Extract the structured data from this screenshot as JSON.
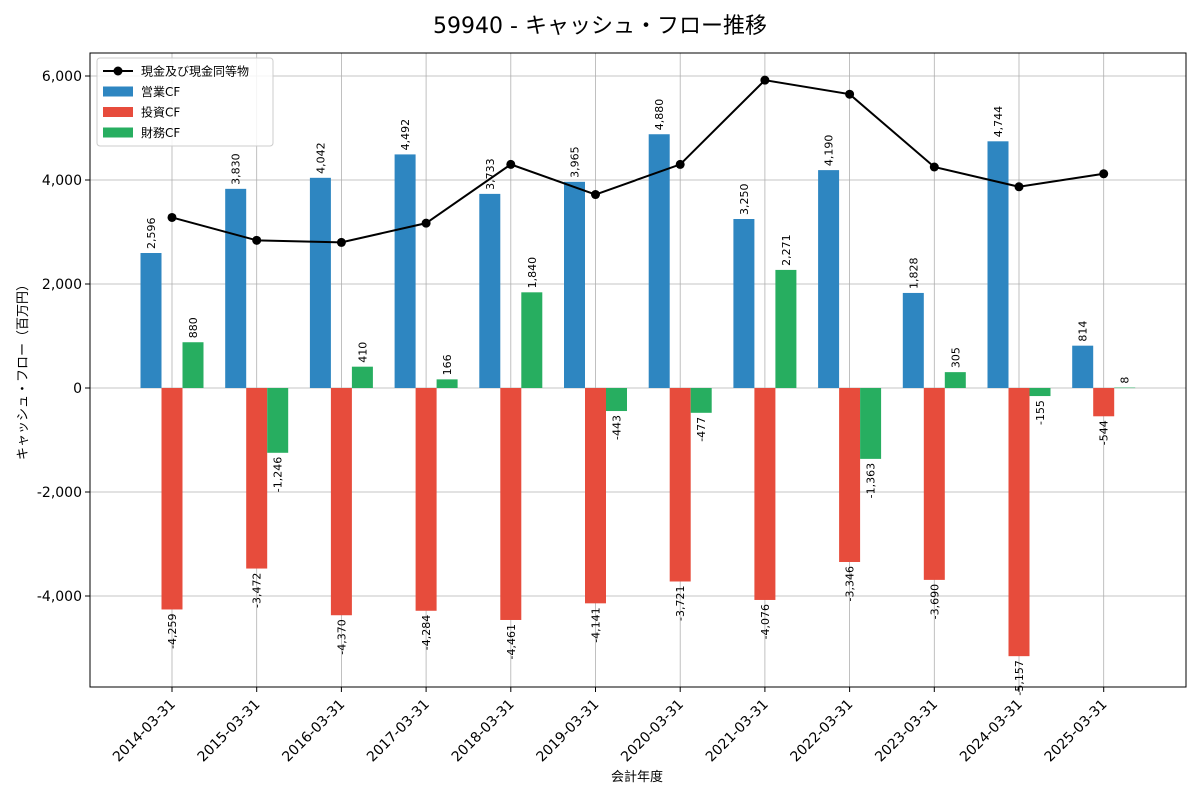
{
  "chart_data": {
    "type": "bar",
    "title": "59940 - キャッシュ・フロー推移",
    "xlabel": "会計年度",
    "ylabel": "キャッシュ・フロー（百万円）",
    "ylim": [
      -5400,
      6000
    ],
    "yticks": [
      -4000,
      -2000,
      0,
      2000,
      4000,
      6000
    ],
    "ytick_labels": [
      "-4,000",
      "-2,000",
      "0",
      "2,000",
      "4,000",
      "6,000"
    ],
    "grid": true,
    "legend_position": "top-left",
    "categories": [
      "2014-03-31",
      "2015-03-31",
      "2016-03-31",
      "2017-03-31",
      "2018-03-31",
      "2019-03-31",
      "2020-03-31",
      "2021-03-31",
      "2022-03-31",
      "2023-03-31",
      "2024-03-31",
      "2025-03-31"
    ],
    "series": [
      {
        "name": "営業CF",
        "kind": "bar",
        "color": "#2e86c1",
        "values": [
          2596,
          3830,
          4042,
          4492,
          3733,
          3965,
          4880,
          3250,
          4190,
          1828,
          4744,
          814
        ],
        "labels": [
          "2,596",
          "3,830",
          "4,042",
          "4,492",
          "3,733",
          "3,965",
          "4,880",
          "3,250",
          "4,190",
          "1,828",
          "4,744",
          "814"
        ]
      },
      {
        "name": "投資CF",
        "kind": "bar",
        "color": "#e74c3c",
        "values": [
          -4259,
          -3472,
          -4370,
          -4284,
          -4461,
          -4141,
          -3721,
          -4076,
          -3346,
          -3690,
          -5157,
          -544
        ],
        "labels": [
          "-4,259",
          "-3,472",
          "-4,370",
          "-4,284",
          "-4,461",
          "-4,141",
          "-3,721",
          "-4,076",
          "-3,346",
          "-3,690",
          "-5,157",
          "-544"
        ]
      },
      {
        "name": "財務CF",
        "kind": "bar",
        "color": "#27ae60",
        "values": [
          880,
          -1246,
          410,
          166,
          1840,
          -443,
          -477,
          2271,
          -1363,
          305,
          -155,
          8
        ],
        "labels": [
          "880",
          "-1,246",
          "410",
          "166",
          "1,840",
          "-443",
          "-477",
          "2,271",
          "-1,363",
          "305",
          "-155",
          "8"
        ]
      },
      {
        "name": "現金及び現金同等物",
        "kind": "line",
        "color": "#000000",
        "values": [
          3280,
          2840,
          2800,
          3170,
          4300,
          3720,
          4300,
          5920,
          5650,
          4250,
          3870,
          4120
        ]
      }
    ]
  }
}
